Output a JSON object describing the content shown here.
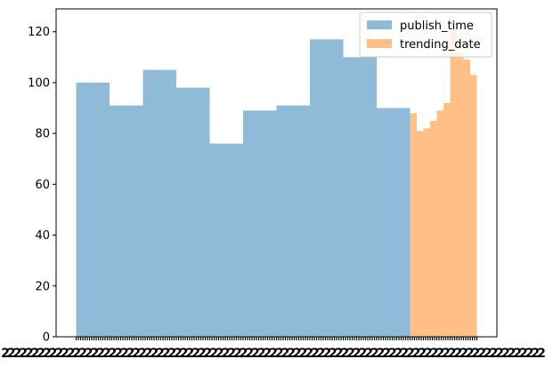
{
  "chart_data": {
    "type": "bar",
    "title": "",
    "xlabel": "",
    "ylabel": "",
    "ylim": [
      0,
      129
    ],
    "y_ticks": [
      0,
      20,
      40,
      60,
      80,
      100,
      120
    ],
    "x_tick_labels_overlapping": true,
    "x_tick_label_text": "2",
    "grid": false,
    "legend_placement": "upper-right",
    "colors": {
      "publish_time": "#1f77b4",
      "trending_date": "#ff7f0e"
    },
    "series": [
      {
        "name": "publish_time",
        "alpha": 0.5,
        "bins": [
          {
            "from": 0,
            "to": 1,
            "value": 100
          },
          {
            "from": 1,
            "to": 2,
            "value": 91
          },
          {
            "from": 2,
            "to": 3,
            "value": 105
          },
          {
            "from": 3,
            "to": 4,
            "value": 98
          },
          {
            "from": 4,
            "to": 5,
            "value": 76
          },
          {
            "from": 5,
            "to": 6,
            "value": 89
          },
          {
            "from": 6,
            "to": 7,
            "value": 91
          },
          {
            "from": 7,
            "to": 8,
            "value": 117
          },
          {
            "from": 8,
            "to": 9,
            "value": 110
          },
          {
            "from": 9,
            "to": 10,
            "value": 90
          }
        ]
      },
      {
        "name": "trending_date",
        "alpha": 0.5,
        "bins": [
          {
            "from": 10.0,
            "to": 10.2,
            "value": 88
          },
          {
            "from": 10.2,
            "to": 10.4,
            "value": 81
          },
          {
            "from": 10.4,
            "to": 10.6,
            "value": 82
          },
          {
            "from": 10.6,
            "to": 10.8,
            "value": 85
          },
          {
            "from": 10.8,
            "to": 11.0,
            "value": 89
          },
          {
            "from": 11.0,
            "to": 11.2,
            "value": 92
          },
          {
            "from": 11.2,
            "to": 11.4,
            "value": 123
          },
          {
            "from": 11.4,
            "to": 11.6,
            "value": 112
          },
          {
            "from": 11.6,
            "to": 11.8,
            "value": 109
          },
          {
            "from": 11.8,
            "to": 12.0,
            "value": 103
          }
        ]
      }
    ]
  }
}
